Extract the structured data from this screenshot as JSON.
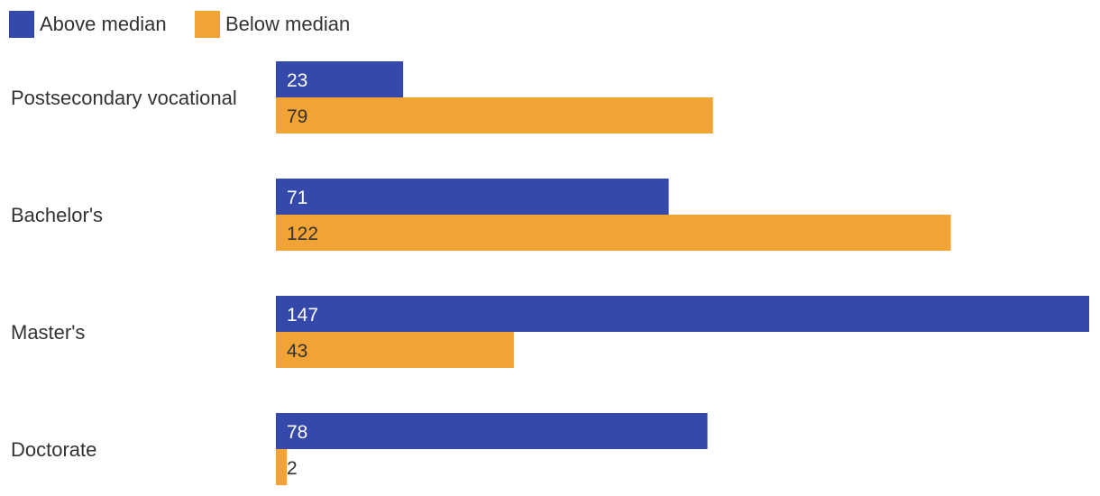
{
  "chart_data": {
    "type": "bar",
    "orientation": "horizontal",
    "categories": [
      "Postsecondary vocational",
      "Bachelor's",
      "Master's",
      "Doctorate"
    ],
    "series": [
      {
        "name": "Above median",
        "color": "#3549ab",
        "label_color": "#ffffff",
        "values": [
          23,
          71,
          147,
          78
        ]
      },
      {
        "name": "Below median",
        "color": "#f2a335",
        "label_color": "#333333",
        "values": [
          79,
          122,
          43,
          2
        ]
      }
    ],
    "xlim": [
      0,
      147
    ],
    "grid": false,
    "legend": "top-left"
  }
}
